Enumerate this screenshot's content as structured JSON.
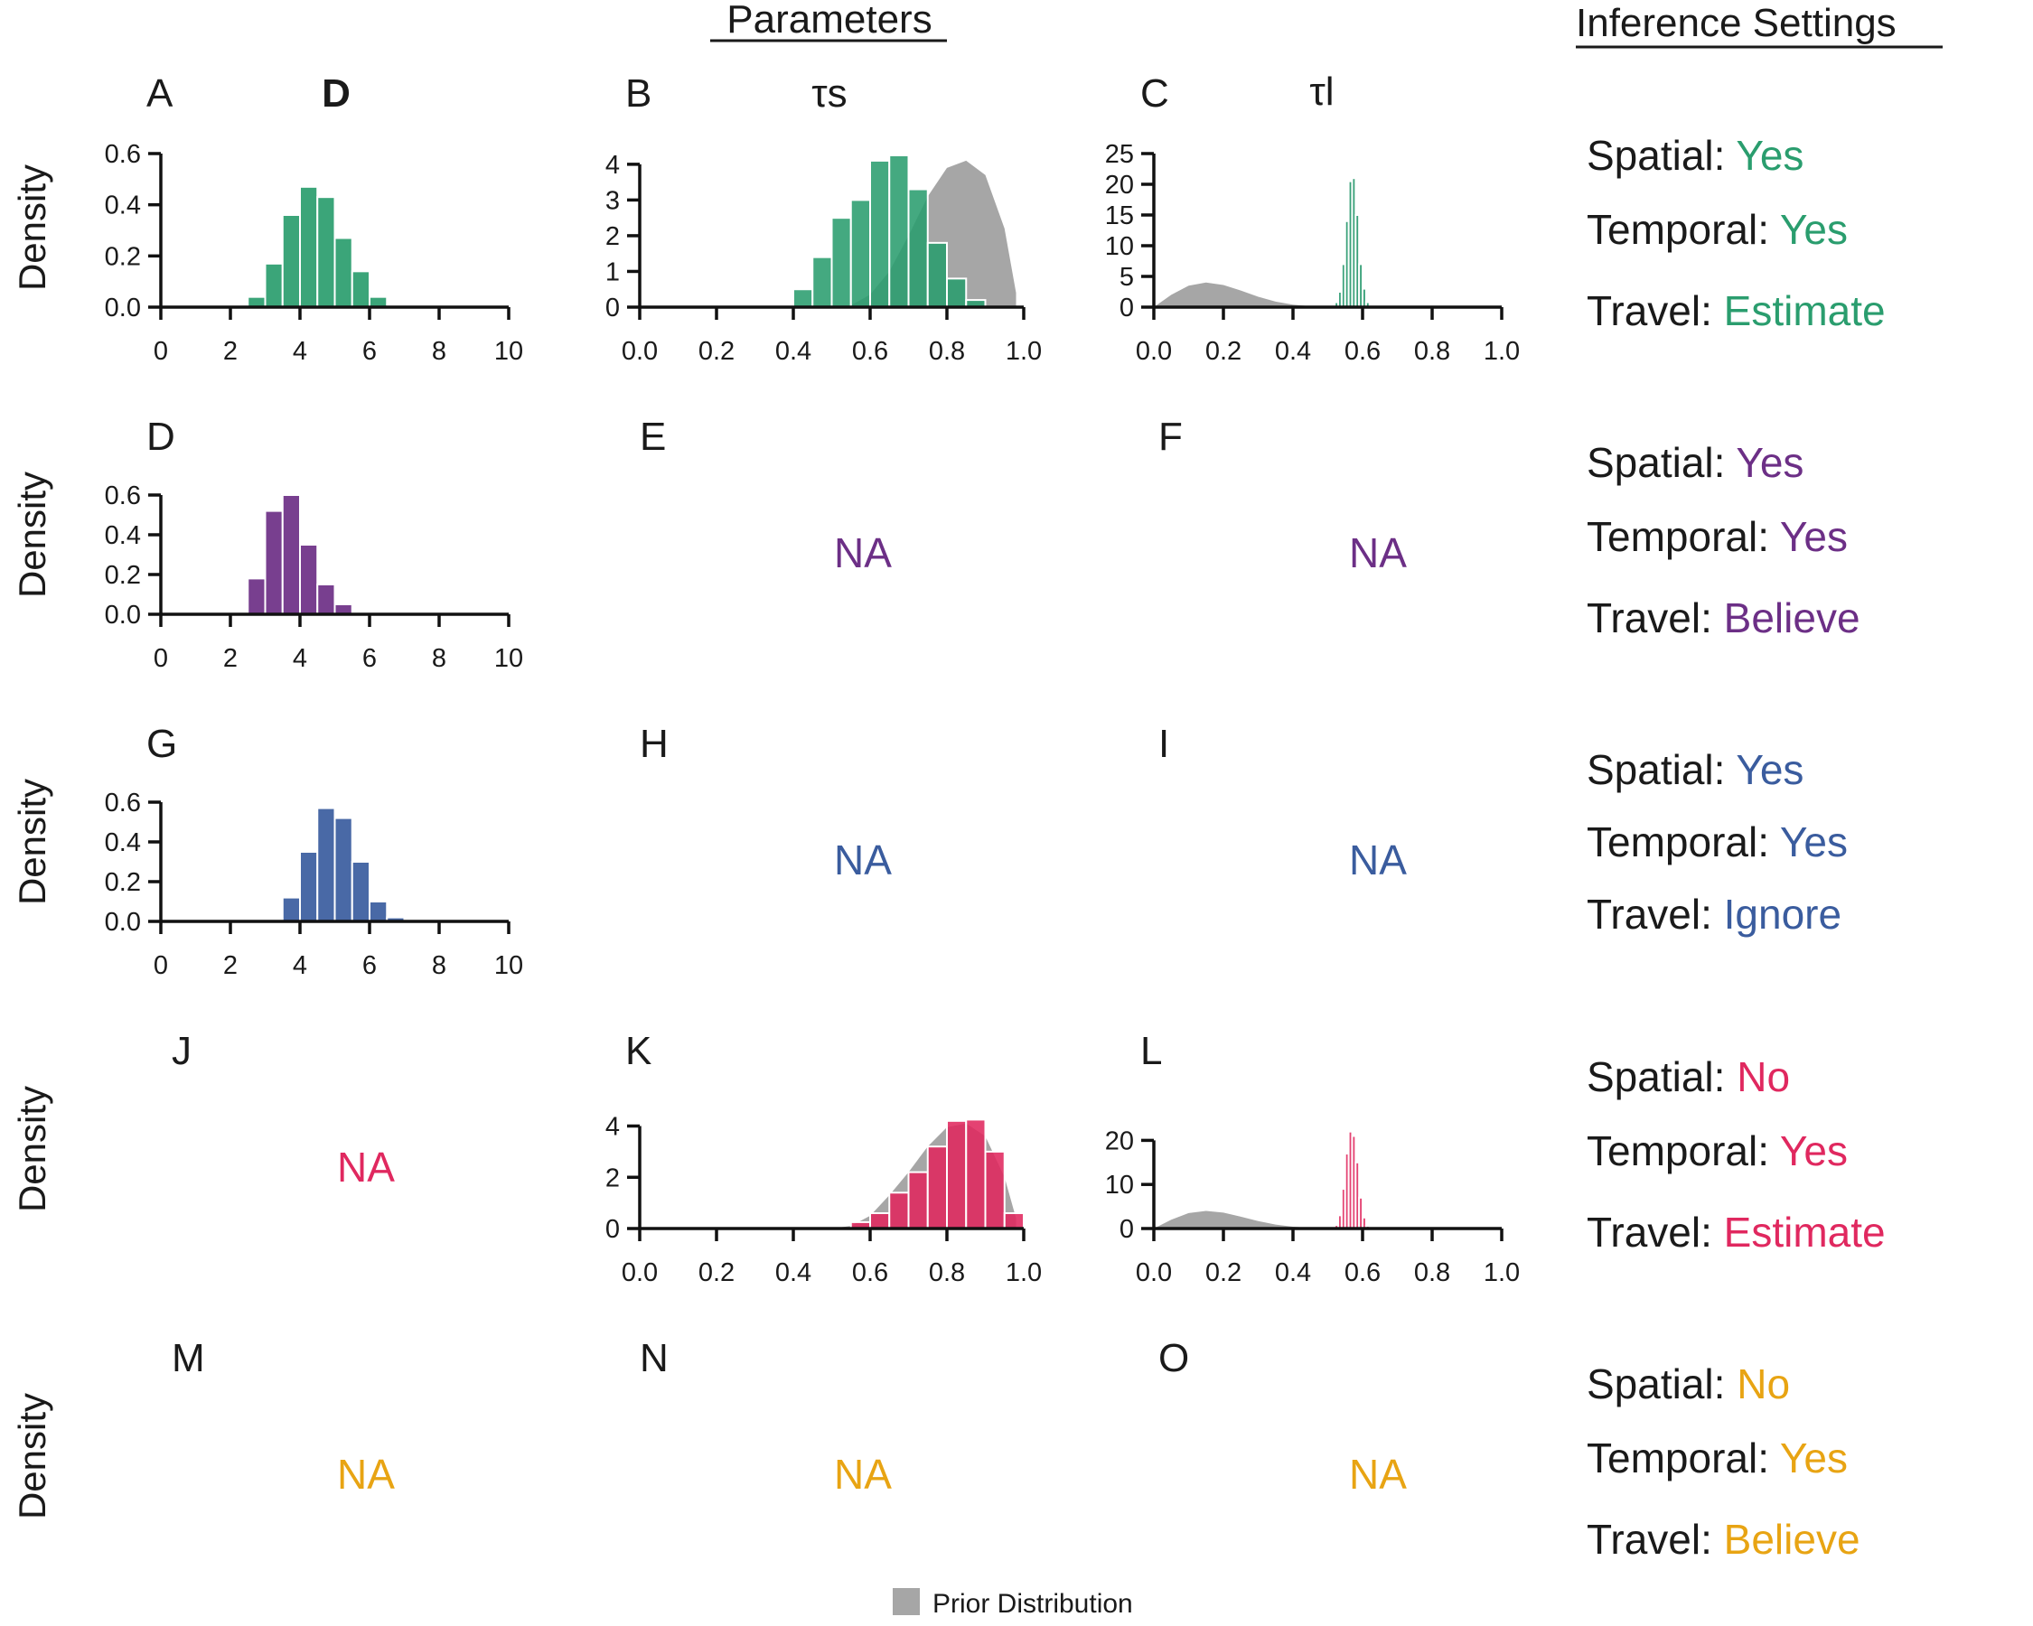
{
  "header": {
    "parameters": "Parameters",
    "inference_settings": "Inference Settings"
  },
  "param_symbols": [
    "D",
    "τs",
    "τl"
  ],
  "y_label": "Density",
  "na_label": "NA",
  "legend": {
    "label": "Prior Distribution",
    "color": "#a6a6a6"
  },
  "colors": {
    "row1": "#2a9d6e",
    "row2": "#6c2f86",
    "row3": "#3a5c9e",
    "row4": "#e0285f",
    "row5": "#e8a413",
    "prior": "#a6a6a6"
  },
  "rows": [
    {
      "color": "#2a9d6e",
      "settings": [
        {
          "label": "Spatial:",
          "value": "Yes"
        },
        {
          "label": "Temporal:",
          "value": "Yes"
        },
        {
          "label": "Travel:",
          "value": "Estimate"
        }
      ]
    },
    {
      "color": "#6c2f86",
      "settings": [
        {
          "label": "Spatial:",
          "value": "Yes"
        },
        {
          "label": "Temporal:",
          "value": "Yes"
        },
        {
          "label": "Travel:",
          "value": "Believe"
        }
      ]
    },
    {
      "color": "#3a5c9e",
      "settings": [
        {
          "label": "Spatial:",
          "value": "Yes"
        },
        {
          "label": "Temporal:",
          "value": "Yes"
        },
        {
          "label": "Travel:",
          "value": "Ignore"
        }
      ]
    },
    {
      "color": "#e0285f",
      "settings": [
        {
          "label": "Spatial:",
          "value": "No"
        },
        {
          "label": "Temporal:",
          "value": "Yes"
        },
        {
          "label": "Travel:",
          "value": "Estimate"
        }
      ]
    },
    {
      "color": "#e8a413",
      "settings": [
        {
          "label": "Spatial:",
          "value": "No"
        },
        {
          "label": "Temporal:",
          "value": "Yes"
        },
        {
          "label": "Travel:",
          "value": "Believe"
        }
      ]
    }
  ],
  "chart_data": [
    {
      "panel": "A",
      "type": "bar",
      "row": 0,
      "col": 0,
      "color": "#2a9d6e",
      "xlim": [
        0,
        10
      ],
      "ylim": [
        0,
        0.6
      ],
      "xticks": [
        "0",
        "2",
        "4",
        "6",
        "8",
        "10"
      ],
      "xtick_values": [
        0,
        2,
        4,
        6,
        8,
        10
      ],
      "yticks": [
        "0.0",
        "0.2",
        "0.4",
        "0.6"
      ],
      "ytick_values": [
        0,
        0.2,
        0.4,
        0.6
      ],
      "bin_width": 0.5,
      "bins": [
        [
          2.5,
          0.04
        ],
        [
          3.0,
          0.17
        ],
        [
          3.5,
          0.36
        ],
        [
          4.0,
          0.47
        ],
        [
          4.5,
          0.43
        ],
        [
          5.0,
          0.27
        ],
        [
          5.5,
          0.14
        ],
        [
          6.0,
          0.04
        ]
      ]
    },
    {
      "panel": "B",
      "type": "bar",
      "row": 0,
      "col": 1,
      "color": "#2a9d6e",
      "xlim": [
        0,
        1
      ],
      "ylim": [
        0,
        4.3
      ],
      "xticks": [
        "0.0",
        "0.2",
        "0.4",
        "0.6",
        "0.8",
        "1.0"
      ],
      "xtick_values": [
        0,
        0.2,
        0.4,
        0.6,
        0.8,
        1.0
      ],
      "yticks": [
        "0",
        "1",
        "2",
        "3",
        "4"
      ],
      "ytick_values": [
        0,
        1,
        2,
        3,
        4
      ],
      "bin_width": 0.05,
      "bins": [
        [
          0.35,
          0.04
        ],
        [
          0.4,
          0.5
        ],
        [
          0.45,
          1.4
        ],
        [
          0.5,
          2.5
        ],
        [
          0.55,
          3.0
        ],
        [
          0.6,
          4.1
        ],
        [
          0.65,
          4.25
        ],
        [
          0.7,
          3.3
        ],
        [
          0.75,
          1.8
        ],
        [
          0.8,
          0.8
        ],
        [
          0.85,
          0.2
        ]
      ],
      "prior": {
        "x": [
          0.55,
          0.6,
          0.65,
          0.7,
          0.75,
          0.8,
          0.85,
          0.9,
          0.95,
          0.98
        ],
        "y": [
          0.05,
          0.35,
          1.0,
          2.0,
          3.1,
          3.9,
          4.1,
          3.7,
          2.2,
          0.4
        ]
      }
    },
    {
      "panel": "C",
      "type": "bar",
      "row": 0,
      "col": 2,
      "color": "#1e9466",
      "xlim": [
        0,
        1
      ],
      "ylim": [
        0,
        25
      ],
      "xticks": [
        "0.0",
        "0.2",
        "0.4",
        "0.6",
        "0.8",
        "1.0"
      ],
      "xtick_values": [
        0,
        0.2,
        0.4,
        0.6,
        0.8,
        1.0
      ],
      "yticks": [
        "0",
        "5",
        "10",
        "15",
        "20",
        "25"
      ],
      "ytick_values": [
        0,
        5,
        10,
        15,
        20,
        25
      ],
      "bin_width": 0.01,
      "bins": [
        [
          0.52,
          0.8
        ],
        [
          0.53,
          2.5
        ],
        [
          0.54,
          7
        ],
        [
          0.55,
          14
        ],
        [
          0.56,
          20.5
        ],
        [
          0.57,
          21
        ],
        [
          0.58,
          15
        ],
        [
          0.59,
          7
        ],
        [
          0.6,
          3
        ],
        [
          0.61,
          0.8
        ]
      ],
      "prior": {
        "x": [
          0,
          0.05,
          0.1,
          0.15,
          0.2,
          0.25,
          0.3,
          0.35,
          0.4,
          0.45,
          0.5
        ],
        "y": [
          0.0,
          2.0,
          3.5,
          4.0,
          3.6,
          2.7,
          1.7,
          0.9,
          0.4,
          0.15,
          0.05
        ]
      }
    },
    {
      "panel": "D",
      "type": "bar",
      "row": 1,
      "col": 0,
      "color": "#6c2f86",
      "xlim": [
        0,
        10
      ],
      "ylim": [
        0,
        0.6
      ],
      "xticks": [
        "0",
        "2",
        "4",
        "6",
        "8",
        "10"
      ],
      "xtick_values": [
        0,
        2,
        4,
        6,
        8,
        10
      ],
      "yticks": [
        "0.0",
        "0.2",
        "0.4",
        "0.6"
      ],
      "ytick_values": [
        0,
        0.2,
        0.4,
        0.6
      ],
      "bin_width": 0.5,
      "bins": [
        [
          2.0,
          0.01
        ],
        [
          2.5,
          0.18
        ],
        [
          3.0,
          0.52
        ],
        [
          3.5,
          0.6
        ],
        [
          4.0,
          0.35
        ],
        [
          4.5,
          0.15
        ],
        [
          5.0,
          0.05
        ]
      ]
    },
    {
      "panel": "E",
      "type": "na",
      "row": 1,
      "col": 1
    },
    {
      "panel": "F",
      "type": "na",
      "row": 1,
      "col": 2
    },
    {
      "panel": "G",
      "type": "bar",
      "row": 2,
      "col": 0,
      "color": "#3a5c9e",
      "xlim": [
        0,
        10
      ],
      "ylim": [
        0,
        0.6
      ],
      "xticks": [
        "0",
        "2",
        "4",
        "6",
        "8",
        "10"
      ],
      "xtick_values": [
        0,
        2,
        4,
        6,
        8,
        10
      ],
      "yticks": [
        "0.0",
        "0.2",
        "0.4",
        "0.6"
      ],
      "ytick_values": [
        0,
        0.2,
        0.4,
        0.6
      ],
      "bin_width": 0.5,
      "bins": [
        [
          3.5,
          0.12
        ],
        [
          4.0,
          0.35
        ],
        [
          4.5,
          0.57
        ],
        [
          5.0,
          0.52
        ],
        [
          5.5,
          0.3
        ],
        [
          6.0,
          0.1
        ],
        [
          6.5,
          0.02
        ]
      ]
    },
    {
      "panel": "H",
      "type": "na",
      "row": 2,
      "col": 1
    },
    {
      "panel": "I",
      "type": "na",
      "row": 2,
      "col": 2
    },
    {
      "panel": "J",
      "type": "na",
      "row": 3,
      "col": 0
    },
    {
      "panel": "K",
      "type": "bar",
      "row": 3,
      "col": 1,
      "color": "#e0285f",
      "xlim": [
        0,
        1
      ],
      "ylim": [
        0,
        4.3
      ],
      "xticks": [
        "0.0",
        "0.2",
        "0.4",
        "0.6",
        "0.8",
        "1.0"
      ],
      "xtick_values": [
        0,
        0.2,
        0.4,
        0.6,
        0.8,
        1.0
      ],
      "yticks": [
        "0",
        "2",
        "4"
      ],
      "ytick_values": [
        0,
        2,
        4
      ],
      "bin_width": 0.05,
      "bins": [
        [
          0.55,
          0.25
        ],
        [
          0.6,
          0.6
        ],
        [
          0.65,
          1.4
        ],
        [
          0.7,
          2.2
        ],
        [
          0.75,
          3.2
        ],
        [
          0.8,
          4.2
        ],
        [
          0.85,
          4.25
        ],
        [
          0.9,
          3.0
        ],
        [
          0.95,
          0.6
        ]
      ],
      "prior": {
        "x": [
          0.5,
          0.55,
          0.6,
          0.65,
          0.7,
          0.75,
          0.8,
          0.85,
          0.9,
          0.95,
          0.98
        ],
        "y": [
          0.0,
          0.1,
          0.5,
          1.3,
          2.2,
          3.2,
          3.95,
          4.1,
          3.6,
          2.0,
          0.4
        ]
      }
    },
    {
      "panel": "L",
      "type": "bar",
      "row": 3,
      "col": 2,
      "color": "#e0285f",
      "xlim": [
        0,
        1
      ],
      "ylim": [
        0,
        25
      ],
      "xticks": [
        "0.0",
        "0.2",
        "0.4",
        "0.6",
        "0.8",
        "1.0"
      ],
      "xtick_values": [
        0,
        0.2,
        0.4,
        0.6,
        0.8,
        1.0
      ],
      "yticks": [
        "0",
        "10",
        "20"
      ],
      "ytick_values": [
        0,
        10,
        20
      ],
      "bin_width": 0.01,
      "bins": [
        [
          0.52,
          0.8
        ],
        [
          0.53,
          3
        ],
        [
          0.54,
          9
        ],
        [
          0.55,
          17
        ],
        [
          0.56,
          22
        ],
        [
          0.57,
          21
        ],
        [
          0.58,
          15
        ],
        [
          0.59,
          7
        ],
        [
          0.6,
          2.5
        ],
        [
          0.61,
          0.6
        ]
      ],
      "prior": {
        "x": [
          0,
          0.05,
          0.1,
          0.15,
          0.2,
          0.25,
          0.3,
          0.35,
          0.4,
          0.45,
          0.5
        ],
        "y": [
          0.0,
          2.0,
          3.5,
          4.0,
          3.6,
          2.7,
          1.7,
          0.9,
          0.4,
          0.15,
          0.05
        ]
      }
    },
    {
      "panel": "M",
      "type": "na",
      "row": 4,
      "col": 0
    },
    {
      "panel": "N",
      "type": "na",
      "row": 4,
      "col": 1
    },
    {
      "panel": "O",
      "type": "na",
      "row": 4,
      "col": 2
    }
  ]
}
